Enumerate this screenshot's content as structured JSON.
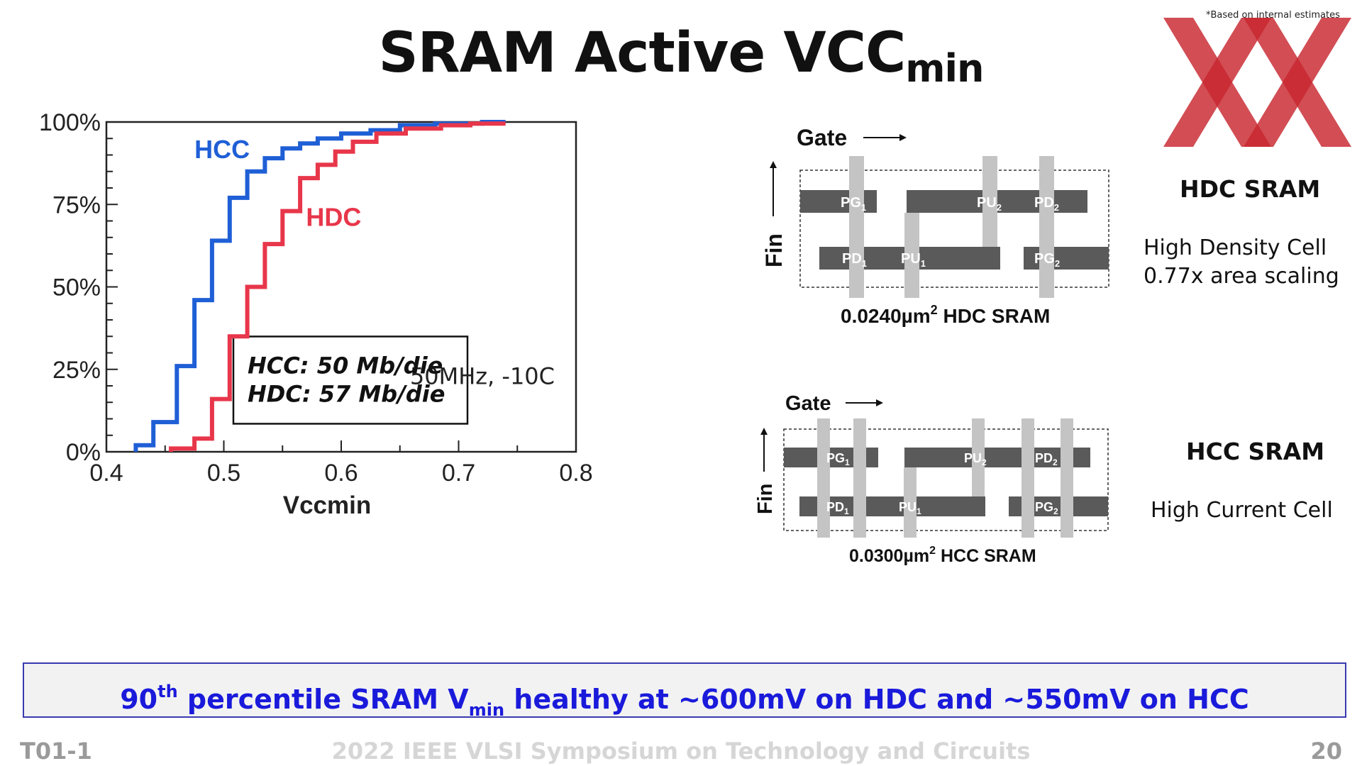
{
  "title": {
    "main": "SRAM Active VCC",
    "sub": "min"
  },
  "disclaimer": "*Based on internal estimates",
  "logo": {
    "name": "xx-watermark-logo",
    "color": "#c8262e"
  },
  "chart_data": {
    "type": "line",
    "step": true,
    "xlabel": "Vccmin",
    "ylabel": "",
    "xlim": [
      0.4,
      0.8
    ],
    "ylim": [
      0,
      100
    ],
    "x_ticks": [
      "0.4",
      "0.5",
      "0.6",
      "0.7",
      "0.8"
    ],
    "y_ticks": [
      "0%",
      "25%",
      "50%",
      "75%",
      "100%"
    ],
    "grid": false,
    "annotation": "50MHz, -10C",
    "box_lines": [
      "HCC: 50 Mb/die",
      "HDC: 57 Mb/die"
    ],
    "series": [
      {
        "name": "HCC",
        "color": "#1f5fd6",
        "points": [
          [
            0.425,
            0
          ],
          [
            0.425,
            2
          ],
          [
            0.44,
            2
          ],
          [
            0.44,
            9
          ],
          [
            0.46,
            9
          ],
          [
            0.46,
            26
          ],
          [
            0.475,
            26
          ],
          [
            0.475,
            46
          ],
          [
            0.49,
            46
          ],
          [
            0.49,
            64
          ],
          [
            0.505,
            64
          ],
          [
            0.505,
            77
          ],
          [
            0.52,
            77
          ],
          [
            0.52,
            85
          ],
          [
            0.535,
            85
          ],
          [
            0.535,
            89
          ],
          [
            0.55,
            89
          ],
          [
            0.55,
            92
          ],
          [
            0.565,
            92
          ],
          [
            0.565,
            93.5
          ],
          [
            0.58,
            93.5
          ],
          [
            0.58,
            95
          ],
          [
            0.6,
            95
          ],
          [
            0.6,
            96.5
          ],
          [
            0.625,
            96.5
          ],
          [
            0.625,
            97.5
          ],
          [
            0.65,
            97.5
          ],
          [
            0.65,
            99
          ],
          [
            0.68,
            99
          ],
          [
            0.68,
            99.5
          ],
          [
            0.72,
            99.5
          ],
          [
            0.72,
            100
          ],
          [
            0.74,
            100
          ]
        ]
      },
      {
        "name": "HDC",
        "color": "#e8364a",
        "points": [
          [
            0.455,
            0
          ],
          [
            0.455,
            1
          ],
          [
            0.475,
            1
          ],
          [
            0.475,
            4
          ],
          [
            0.49,
            4
          ],
          [
            0.49,
            16
          ],
          [
            0.505,
            16
          ],
          [
            0.505,
            35
          ],
          [
            0.52,
            35
          ],
          [
            0.52,
            50
          ],
          [
            0.535,
            50
          ],
          [
            0.535,
            63
          ],
          [
            0.55,
            63
          ],
          [
            0.55,
            73
          ],
          [
            0.565,
            73
          ],
          [
            0.565,
            83
          ],
          [
            0.58,
            83
          ],
          [
            0.58,
            87
          ],
          [
            0.595,
            87
          ],
          [
            0.595,
            91
          ],
          [
            0.61,
            91
          ],
          [
            0.61,
            94
          ],
          [
            0.63,
            94
          ],
          [
            0.63,
            96.5
          ],
          [
            0.655,
            96.5
          ],
          [
            0.655,
            98
          ],
          [
            0.685,
            98
          ],
          [
            0.685,
            99
          ],
          [
            0.71,
            99
          ],
          [
            0.71,
            99.5
          ],
          [
            0.74,
            99.5
          ]
        ]
      }
    ]
  },
  "diagrams": {
    "hdc": {
      "gate_label": "Gate",
      "fin_label": "Fin",
      "caption_value": "0.0240µm",
      "caption_sup": "2",
      "caption_rest": " HDC SRAM",
      "labels": [
        {
          "base": "PG",
          "sub": "1"
        },
        {
          "base": "PU",
          "sub": "2"
        },
        {
          "base": "PD",
          "sub": "2"
        },
        {
          "base": "PD",
          "sub": "1"
        },
        {
          "base": "PU",
          "sub": "1"
        },
        {
          "base": "PG",
          "sub": "2"
        }
      ],
      "side_title": "HDC SRAM",
      "side_lines": [
        "High Density Cell",
        "0.77x area scaling"
      ]
    },
    "hcc": {
      "gate_label": "Gate",
      "fin_label": "Fin",
      "caption_value": "0.0300µm",
      "caption_sup": "2",
      "caption_rest": " HCC SRAM",
      "labels": [
        {
          "base": "PG",
          "sub": "1"
        },
        {
          "base": "PU",
          "sub": "2"
        },
        {
          "base": "PD",
          "sub": "2"
        },
        {
          "base": "PD",
          "sub": "1"
        },
        {
          "base": "PU",
          "sub": "1"
        },
        {
          "base": "PG",
          "sub": "2"
        }
      ],
      "side_title": "HCC SRAM",
      "side_lines": [
        "High Current Cell"
      ]
    }
  },
  "banner": {
    "part1": "90",
    "part1_sup": "th",
    "part2": " percentile SRAM V",
    "part2_sub": "min",
    "part3": " healthy at ~600mV on HDC and ~550mV on HCC"
  },
  "footer": {
    "left": "T01-1",
    "center": "2022 IEEE VLSI Symposium on Technology and Circuits",
    "right": "20"
  },
  "colors": {
    "fin": "#5a5a5a",
    "gate": "#c4c4c4",
    "banner_text": "#1a1adb",
    "banner_border": "#3a3ab0"
  }
}
